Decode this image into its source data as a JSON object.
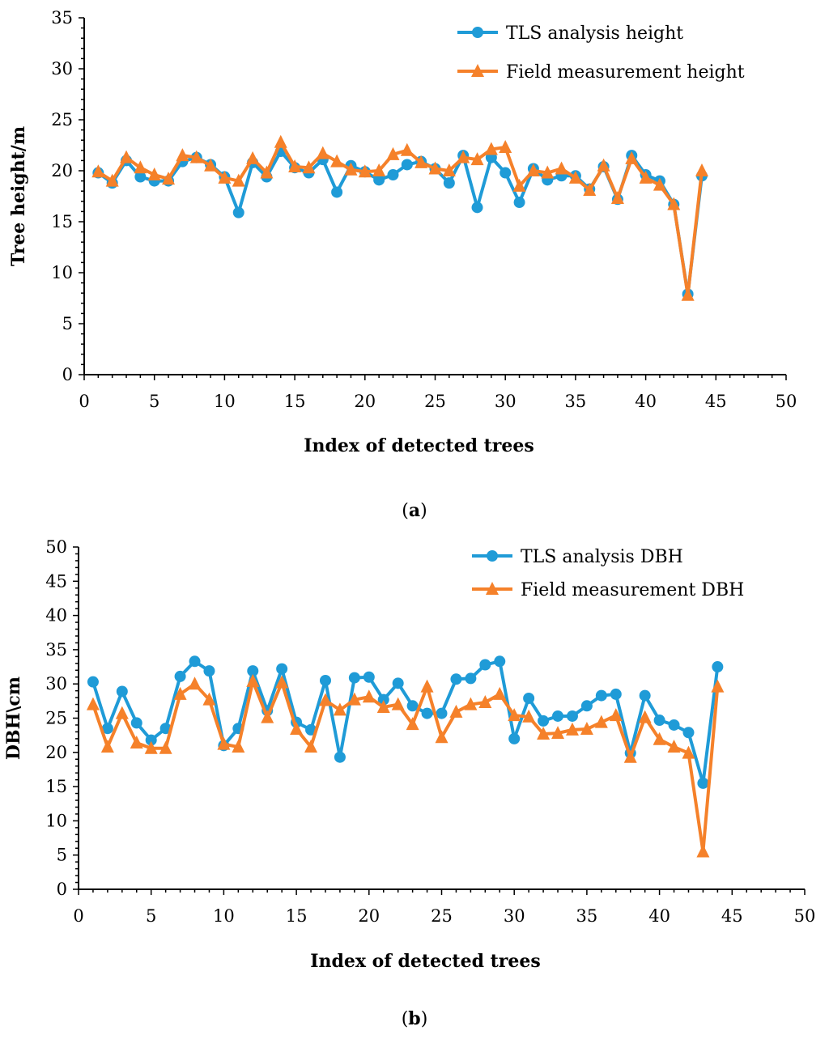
{
  "chart_data": [
    {
      "type": "line",
      "caption_label": "a",
      "xlabel": "Index of detected trees",
      "ylabel": "Tree height/m",
      "xlim": [
        0,
        50
      ],
      "ylim": [
        0,
        35
      ],
      "xticks": [
        0,
        5,
        10,
        15,
        20,
        25,
        30,
        35,
        40,
        45,
        50
      ],
      "yticks": [
        0,
        5,
        10,
        15,
        20,
        25,
        30,
        35
      ],
      "legend_position": "top-right",
      "x": [
        1,
        2,
        3,
        4,
        5,
        6,
        7,
        8,
        9,
        10,
        11,
        12,
        13,
        14,
        15,
        16,
        17,
        18,
        19,
        20,
        21,
        22,
        23,
        24,
        25,
        26,
        27,
        28,
        29,
        30,
        31,
        32,
        33,
        34,
        35,
        36,
        37,
        38,
        39,
        40,
        41,
        42,
        43,
        44
      ],
      "series": [
        {
          "name": "TLS analysis height",
          "marker": "circle",
          "color": "#1f9bd7",
          "values": [
            19.8,
            18.8,
            21.0,
            19.4,
            19.0,
            19.0,
            20.9,
            21.3,
            20.6,
            19.4,
            15.9,
            20.8,
            19.4,
            21.9,
            20.3,
            19.8,
            21.1,
            17.9,
            20.5,
            19.9,
            19.1,
            19.6,
            20.6,
            20.9,
            20.2,
            18.8,
            21.5,
            16.4,
            21.3,
            19.8,
            16.9,
            20.2,
            19.1,
            19.5,
            19.5,
            18.2,
            20.4,
            17.2,
            21.5,
            19.6,
            19.0,
            16.7,
            7.9,
            19.5
          ]
        },
        {
          "name": "Field measurement height",
          "marker": "triangle",
          "color": "#f5812a",
          "values": [
            19.9,
            19.0,
            21.3,
            20.3,
            19.6,
            19.2,
            21.5,
            21.3,
            20.5,
            19.3,
            19.0,
            21.2,
            19.8,
            22.8,
            20.4,
            20.3,
            21.7,
            20.9,
            20.1,
            19.9,
            20.0,
            21.6,
            22.0,
            20.8,
            20.2,
            20.0,
            21.3,
            21.1,
            22.1,
            22.3,
            18.5,
            20.0,
            19.8,
            20.2,
            19.3,
            18.1,
            20.5,
            17.3,
            21.2,
            19.3,
            18.6,
            16.7,
            7.8,
            20.0
          ]
        }
      ]
    },
    {
      "type": "line",
      "caption_label": "b",
      "xlabel": "Index of detected trees",
      "ylabel": "DBH\\cm",
      "xlim": [
        0,
        50
      ],
      "ylim": [
        0,
        50
      ],
      "xticks": [
        0,
        5,
        10,
        15,
        20,
        25,
        30,
        35,
        40,
        45,
        50
      ],
      "yticks": [
        0,
        5,
        10,
        15,
        20,
        25,
        30,
        35,
        40,
        45,
        50
      ],
      "legend_position": "top-right",
      "x": [
        1,
        2,
        3,
        4,
        5,
        6,
        7,
        8,
        9,
        10,
        11,
        12,
        13,
        14,
        15,
        16,
        17,
        18,
        19,
        20,
        21,
        22,
        23,
        24,
        25,
        26,
        27,
        28,
        29,
        30,
        31,
        32,
        33,
        34,
        35,
        36,
        37,
        38,
        39,
        40,
        41,
        42,
        43,
        44
      ],
      "series": [
        {
          "name": "TLS analysis DBH",
          "marker": "circle",
          "color": "#1f9bd7",
          "values": [
            30.3,
            23.5,
            28.9,
            24.3,
            21.8,
            23.5,
            31.1,
            33.3,
            31.9,
            21.0,
            23.5,
            31.9,
            26.1,
            32.2,
            24.4,
            23.3,
            30.5,
            19.3,
            30.9,
            31.0,
            27.7,
            30.1,
            26.8,
            25.7,
            25.7,
            30.7,
            30.8,
            32.8,
            33.3,
            22.0,
            27.9,
            24.6,
            25.3,
            25.3,
            26.8,
            28.3,
            28.5,
            19.9,
            28.3,
            24.7,
            24.0,
            22.9,
            15.5,
            32.5
          ]
        },
        {
          "name": "Field measurement DBH",
          "marker": "triangle",
          "color": "#f5812a",
          "values": [
            27.0,
            20.8,
            25.7,
            21.4,
            20.6,
            20.6,
            28.5,
            30.0,
            27.7,
            21.2,
            20.8,
            30.4,
            25.1,
            30.2,
            23.4,
            20.8,
            27.6,
            26.2,
            27.7,
            28.1,
            26.6,
            27.0,
            24.1,
            29.6,
            22.2,
            25.9,
            27.0,
            27.3,
            28.5,
            25.4,
            25.2,
            22.7,
            22.8,
            23.3,
            23.4,
            24.4,
            25.4,
            19.3,
            25.1,
            21.9,
            20.8,
            19.9,
            5.5,
            29.6
          ]
        }
      ]
    }
  ]
}
